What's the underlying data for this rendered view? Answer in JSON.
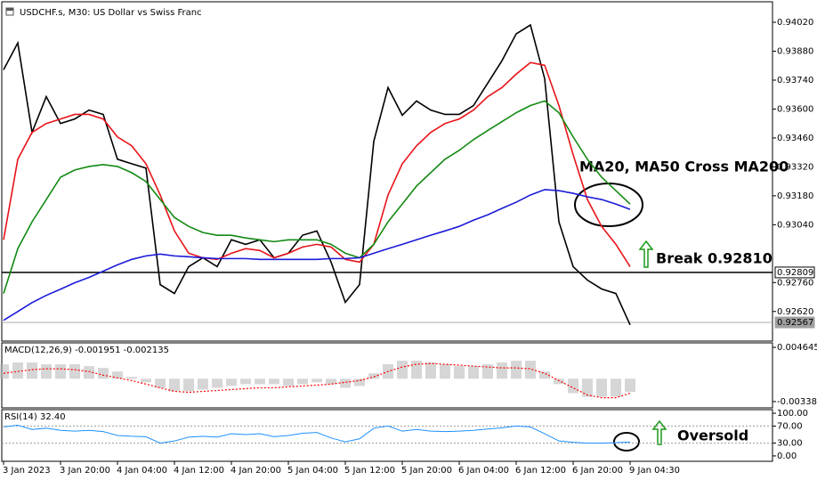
{
  "chart_data": [
    {
      "type": "line",
      "title": "USDCHF.s, M30:  US Dollar vs Swiss Franc",
      "ylim": [
        0.94115,
        0.92481
      ],
      "yticks": [
        {
          "value": 0.9402,
          "label": "0.94020"
        },
        {
          "value": 0.9388,
          "label": "0.93880"
        },
        {
          "value": 0.9374,
          "label": "0.93740"
        },
        {
          "value": 0.936,
          "label": "0.93600"
        },
        {
          "value": 0.9346,
          "label": "0.93460"
        },
        {
          "value": 0.9332,
          "label": "0.93320"
        },
        {
          "value": 0.9318,
          "label": "0.93180"
        },
        {
          "value": 0.9304,
          "label": "0.93040"
        },
        {
          "value": 0.9276,
          "label": "0.92760"
        },
        {
          "value": 0.9262,
          "label": "0.92620"
        }
      ],
      "series": [
        {
          "color": "#000000",
          "values": [
            0.9379,
            0.9392,
            0.93487,
            0.9366,
            0.9353,
            0.93552,
            0.93595,
            0.93574,
            0.93357,
            0.93335,
            0.93314,
            0.9275,
            0.92707,
            0.92837,
            0.9288,
            0.92837,
            0.92967,
            0.92945,
            0.92967,
            0.9288,
            0.92902,
            0.92989,
            0.9301,
            0.92859,
            0.92664,
            0.9275,
            0.93444,
            0.93704,
            0.9357,
            0.93639,
            0.93595,
            0.93574,
            0.93574,
            0.93617,
            0.93725,
            0.93834,
            0.93964,
            0.94007,
            0.93747,
            0.93054,
            0.92837,
            0.92772,
            0.92729,
            0.92707,
            0.92555
          ]
        },
        {
          "color": "#e8141a",
          "values": [
            0.92967,
            0.93357,
            0.93487,
            0.9353,
            0.93552,
            0.93574,
            0.93574,
            0.93552,
            0.93465,
            0.93422,
            0.93335,
            0.93184,
            0.9301,
            0.92902,
            0.9288,
            0.92872,
            0.92902,
            0.92924,
            0.92915,
            0.9288,
            0.92902,
            0.92932,
            0.92945,
            0.92932,
            0.92872,
            0.92859,
            0.92945,
            0.93184,
            0.93335,
            0.93422,
            0.93487,
            0.9353,
            0.93552,
            0.93595,
            0.9366,
            0.93704,
            0.93769,
            0.93825,
            0.93812,
            0.93617,
            0.93379,
            0.93162,
            0.93032,
            0.92945,
            0.92837
          ]
        },
        {
          "color": "#138a13",
          "values": [
            0.92707,
            0.92924,
            0.93054,
            0.93162,
            0.9327,
            0.93305,
            0.93322,
            0.93331,
            0.93322,
            0.93292,
            0.93249,
            0.93162,
            0.93075,
            0.93032,
            0.93002,
            0.92989,
            0.92989,
            0.92976,
            0.92967,
            0.92958,
            0.92967,
            0.92967,
            0.92967,
            0.92945,
            0.92902,
            0.9288,
            0.92945,
            0.93054,
            0.9314,
            0.93227,
            0.93292,
            0.93357,
            0.934,
            0.93452,
            0.93496,
            0.93539,
            0.93582,
            0.93617,
            0.93639,
            0.93582,
            0.93465,
            0.93357,
            0.9327,
            0.93205,
            0.9314
          ]
        },
        {
          "color": "#1a1ad8",
          "values": [
            0.92577,
            0.9262,
            0.92663,
            0.92698,
            0.92728,
            0.92759,
            0.92785,
            0.92815,
            0.92846,
            0.92872,
            0.92889,
            0.92898,
            0.92889,
            0.92885,
            0.9288,
            0.92876,
            0.92876,
            0.92876,
            0.92872,
            0.92872,
            0.92872,
            0.92872,
            0.92872,
            0.92876,
            0.92876,
            0.9288,
            0.92902,
            0.92924,
            0.92945,
            0.92967,
            0.92989,
            0.9301,
            0.93032,
            0.93062,
            0.93088,
            0.93119,
            0.93149,
            0.93184,
            0.9321,
            0.93205,
            0.93192,
            0.93175,
            0.93162,
            0.9314,
            0.93114
          ]
        }
      ],
      "hlines": [
        {
          "value": 0.92809,
          "label": "0.92809",
          "color": "#000000"
        },
        {
          "value": 0.92567,
          "label": "0.92567",
          "color": "#a0a0a0"
        }
      ],
      "annotations": [
        "MA20, MA50 Cross MA200",
        "Break 0.92810"
      ]
    },
    {
      "type": "bar",
      "title": "MACD(12,26,9) -0.001951 -0.002135",
      "ylim": [
        0.00518,
        -0.00418
      ],
      "yticks": [
        {
          "value": 0.004645,
          "label": "0.004645"
        },
        {
          "value": -0.00338,
          "label": "-0.003380"
        }
      ],
      "series": [
        {
          "type": "bar",
          "color": "#b4b4b4",
          "values": [
            0.00214,
            0.00241,
            0.00241,
            0.00214,
            0.00214,
            0.00214,
            0.00187,
            0.0016,
            0.00107,
            0.00027,
            -0.00053,
            -0.00134,
            -0.00187,
            -0.00187,
            -0.0016,
            -0.00134,
            -0.00107,
            -0.0008,
            -0.0008,
            -0.0008,
            -0.00107,
            -0.0008,
            -0.00053,
            -0.0008,
            -0.00134,
            -0.00107,
            0.0008,
            0.00214,
            0.00267,
            0.00267,
            0.00241,
            0.00214,
            0.00187,
            0.00187,
            0.00214,
            0.00241,
            0.00267,
            0.00267,
            0.00107,
            -0.0008,
            -0.00214,
            -0.00267,
            -0.00267,
            -0.00267,
            -0.00195
          ]
        },
        {
          "type": "line",
          "color": "#ff0000",
          "values": [
            0.0008,
            0.00107,
            0.00134,
            0.00147,
            0.00147,
            0.00134,
            0.00107,
            0.00053,
            0.00013,
            -0.00027,
            -0.0008,
            -0.00134,
            -0.00187,
            -0.00201,
            -0.00187,
            -0.00174,
            -0.0016,
            -0.00147,
            -0.00134,
            -0.00134,
            -0.0012,
            -0.00107,
            -0.00094,
            -0.0008,
            -0.00053,
            -0.00027,
            0.00027,
            0.00107,
            0.00174,
            0.00214,
            0.00227,
            0.00214,
            0.00201,
            0.00187,
            0.00174,
            0.0016,
            0.0016,
            0.00147,
            0.0008,
            -0.00027,
            -0.00134,
            -0.00241,
            -0.00281,
            -0.00281,
            -0.00214
          ]
        }
      ]
    },
    {
      "type": "line",
      "title": "RSI(14) 32.40",
      "ylim": [
        106.4,
        -10.6
      ],
      "yticks": [
        {
          "value": 100,
          "label": "100.00"
        },
        {
          "value": 70,
          "label": "70.00"
        },
        {
          "value": 30,
          "label": "30.00"
        },
        {
          "value": 0,
          "label": "0.00"
        }
      ],
      "levels": [
        70,
        30
      ],
      "categories": [
        "3 Jan 2023",
        null,
        null,
        null,
        "3 Jan 20:00",
        null,
        null,
        null,
        "4 Jan 04:00",
        null,
        null,
        null,
        "4 Jan 12:00",
        null,
        null,
        null,
        "4 Jan 20:00",
        null,
        null,
        null,
        "5 Jan 04:00",
        null,
        null,
        null,
        "5 Jan 12:00",
        null,
        null,
        null,
        "5 Jan 20:00",
        null,
        null,
        null,
        "6 Jan 04:00",
        null,
        null,
        null,
        "6 Jan 12:00",
        null,
        null,
        null,
        "6 Jan 20:00",
        null,
        null,
        null,
        "9 Jan 04:30"
      ],
      "series": [
        {
          "color": "#1e90ff",
          "values": [
            68,
            72,
            62,
            65,
            60,
            58,
            60,
            57,
            48,
            46,
            45,
            30,
            35,
            44,
            46,
            44,
            52,
            50,
            52,
            45,
            48,
            53,
            55,
            42,
            33,
            40,
            65,
            70,
            58,
            62,
            58,
            57,
            58,
            60,
            63,
            66,
            70,
            68,
            52,
            35,
            32,
            30,
            30,
            31,
            32.4
          ]
        }
      ],
      "annotations": [
        "Oversold"
      ]
    }
  ]
}
